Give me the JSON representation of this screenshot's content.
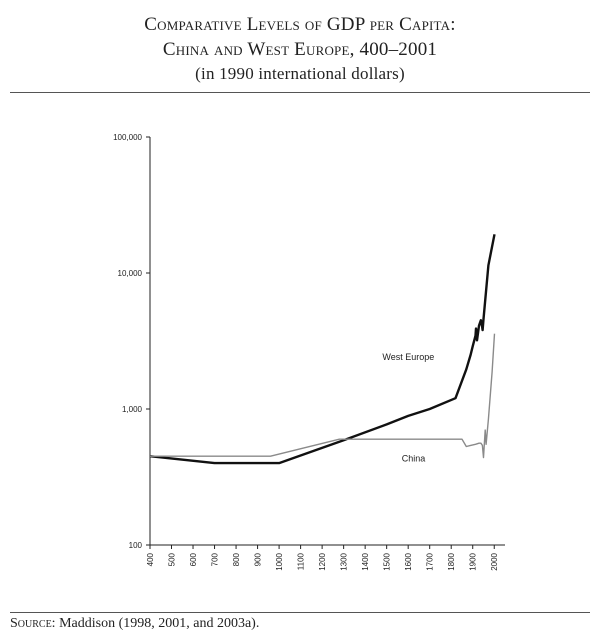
{
  "header": {
    "title_line1": "Comparative Levels of GDP per Capita:",
    "title_line2": "China and West Europe, 400–2001",
    "subtitle": "(in 1990 international dollars)"
  },
  "footer": {
    "source_label": "Source:",
    "source_text": "Maddison (1998, 2001, and 2003a)."
  },
  "chart_data": {
    "type": "line",
    "title": "Comparative Levels of GDP per Capita: China and West Europe, 400–2001",
    "subtitle": "(in 1990 international dollars)",
    "y_scale": "log",
    "ylim": [
      100,
      100000
    ],
    "xlim": [
      400,
      2050
    ],
    "y_ticks": [
      100,
      1000,
      10000,
      100000
    ],
    "y_tick_labels": [
      "100",
      "1,000",
      "10,000",
      "100,000"
    ],
    "x_ticks": [
      400,
      500,
      600,
      700,
      800,
      900,
      1000,
      1100,
      1200,
      1300,
      1400,
      1500,
      1600,
      1700,
      1800,
      1900,
      2000
    ],
    "x_tick_labels": [
      "400",
      "500",
      "600",
      "700",
      "800",
      "900",
      "1000",
      "1100",
      "1200",
      "1300",
      "1400",
      "1500",
      "1600",
      "1700",
      "1800",
      "1900",
      "2000"
    ],
    "grid": false,
    "series": [
      {
        "name": "West Europe",
        "color": "#111111",
        "x": [
          400,
          700,
          1000,
          1300,
          1500,
          1600,
          1700,
          1820,
          1870,
          1890,
          1900,
          1913,
          1915,
          1920,
          1929,
          1938,
          1944,
          1946,
          1950,
          1973,
          2001
        ],
        "y": [
          450,
          400,
          400,
          590,
          770,
          890,
          1000,
          1200,
          1960,
          2500,
          2890,
          3460,
          3900,
          3200,
          4100,
          4500,
          4000,
          3800,
          4580,
          11400,
          19260
        ]
      },
      {
        "name": "China",
        "color": "#8a8a8a",
        "x": [
          400,
          960,
          1280,
          1500,
          1600,
          1700,
          1820,
          1850,
          1870,
          1890,
          1913,
          1929,
          1938,
          1945,
          1950,
          1958,
          1962,
          1973,
          1990,
          2001
        ],
        "y": [
          450,
          450,
          600,
          600,
          600,
          600,
          600,
          600,
          530,
          540,
          550,
          560,
          560,
          540,
          440,
          700,
          550,
          840,
          1870,
          3580
        ]
      }
    ]
  }
}
